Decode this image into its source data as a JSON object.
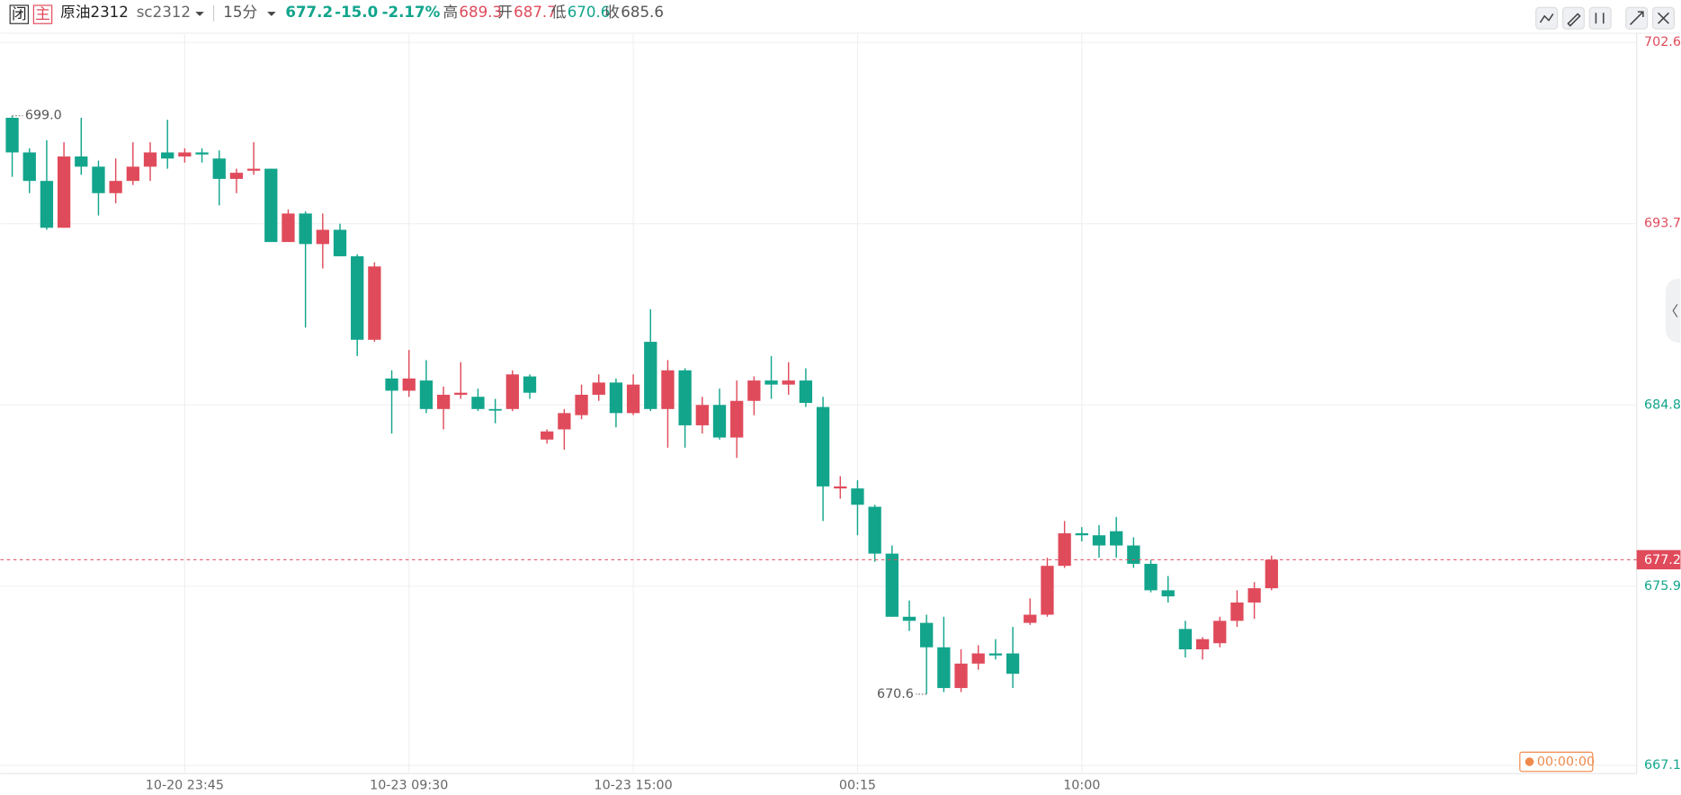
{
  "header": {
    "badge1": "闭",
    "badge2": "主",
    "name": "原油2312",
    "code": "sc2312",
    "period": "15分",
    "last": "677.2",
    "change": "-15.0",
    "change_pct": "-2.17%",
    "high_label": "高",
    "high": "689.3",
    "open_label": "开",
    "open": "687.7",
    "low_label": "低",
    "low": "670.6",
    "close_label": "收",
    "close": "685.6",
    "timer": "00:00:00"
  },
  "chart_data": {
    "type": "candlestick",
    "up_color": "#e04b5b",
    "down_color": "#12a58c",
    "ylim": [
      666.7,
      703.0
    ],
    "yticks": [
      {
        "value": 702.6,
        "label": "702.6",
        "color": "#e04b5b"
      },
      {
        "value": 693.7,
        "label": "693.7",
        "color": "#e04b5b"
      },
      {
        "value": 684.8,
        "label": "684.8",
        "color": "#12a58c"
      },
      {
        "value": 675.9,
        "label": "675.9",
        "color": "#12a58c"
      },
      {
        "value": 667.1,
        "label": "667.1",
        "color": "#12a58c"
      }
    ],
    "grid": true,
    "current_price": {
      "value": 677.2,
      "label": "677.2"
    },
    "annotations": [
      {
        "index": 0,
        "value": 699.0,
        "label": "699.0"
      },
      {
        "index": 53,
        "value": 670.6,
        "label": "670.6"
      }
    ],
    "categories": [
      null,
      null,
      null,
      null,
      null,
      null,
      null,
      null,
      null,
      null,
      "10-20 23:45",
      null,
      null,
      null,
      null,
      null,
      null,
      null,
      null,
      null,
      null,
      null,
      null,
      "10-23 09:30",
      null,
      null,
      null,
      null,
      null,
      null,
      null,
      null,
      null,
      null,
      null,
      null,
      "10-23 15:00",
      null,
      null,
      null,
      null,
      null,
      null,
      null,
      null,
      null,
      null,
      null,
      null,
      "00:15",
      null,
      null,
      null,
      null,
      null,
      null,
      null,
      null,
      null,
      null,
      null,
      null,
      "10:00",
      null,
      null,
      null,
      null,
      null,
      null,
      null,
      null,
      null,
      null,
      null
    ],
    "ohlc": [
      [
        698.9,
        699.0,
        696.0,
        697.2
      ],
      [
        697.2,
        697.4,
        695.2,
        695.8
      ],
      [
        695.8,
        697.8,
        693.4,
        693.5
      ],
      [
        693.5,
        697.7,
        693.5,
        697.0
      ],
      [
        697.0,
        698.9,
        696.1,
        696.5
      ],
      [
        696.5,
        696.8,
        694.1,
        695.2
      ],
      [
        695.2,
        696.9,
        694.7,
        695.8
      ],
      [
        695.8,
        697.7,
        695.6,
        696.5
      ],
      [
        696.5,
        697.7,
        695.8,
        697.2
      ],
      [
        697.2,
        698.8,
        696.4,
        696.9
      ],
      [
        697.0,
        697.4,
        696.7,
        697.2
      ],
      [
        697.2,
        697.4,
        696.7,
        697.1
      ],
      [
        696.9,
        697.3,
        694.6,
        695.9
      ],
      [
        695.9,
        696.4,
        695.2,
        696.2
      ],
      [
        696.3,
        697.7,
        696.1,
        696.4
      ],
      [
        696.4,
        696.4,
        692.8,
        692.8
      ],
      [
        692.8,
        694.4,
        692.8,
        694.2
      ],
      [
        694.2,
        694.3,
        688.6,
        692.7
      ],
      [
        692.7,
        694.2,
        691.5,
        693.4
      ],
      [
        693.4,
        693.7,
        692.1,
        692.1
      ],
      [
        692.1,
        692.2,
        687.2,
        688.0
      ],
      [
        688.0,
        691.8,
        687.9,
        691.6
      ],
      [
        686.1,
        686.5,
        683.4,
        685.5
      ],
      [
        685.5,
        687.5,
        685.2,
        686.1
      ],
      [
        686.0,
        687.0,
        684.4,
        684.6
      ],
      [
        684.6,
        685.7,
        683.6,
        685.3
      ],
      [
        685.3,
        686.9,
        685.1,
        685.4
      ],
      [
        685.2,
        685.6,
        684.5,
        684.6
      ],
      [
        684.6,
        685.1,
        683.9,
        684.6
      ],
      [
        684.6,
        686.5,
        684.5,
        686.3
      ],
      [
        686.2,
        686.3,
        685.1,
        685.4
      ],
      [
        683.1,
        683.6,
        682.9,
        683.5
      ],
      [
        683.6,
        684.6,
        682.6,
        684.4
      ],
      [
        684.3,
        685.8,
        684.1,
        685.3
      ],
      [
        685.3,
        686.3,
        685.0,
        685.9
      ],
      [
        685.9,
        686.1,
        683.7,
        684.4
      ],
      [
        684.4,
        686.3,
        684.3,
        685.8
      ],
      [
        687.9,
        689.5,
        684.5,
        684.6
      ],
      [
        684.6,
        687.0,
        682.7,
        686.5
      ],
      [
        686.5,
        686.6,
        682.7,
        683.8
      ],
      [
        683.8,
        685.2,
        683.4,
        684.8
      ],
      [
        684.8,
        685.6,
        683.1,
        683.2
      ],
      [
        683.2,
        686.0,
        682.2,
        685.0
      ],
      [
        685.0,
        686.2,
        684.3,
        686.0
      ],
      [
        686.0,
        687.2,
        685.1,
        685.8
      ],
      [
        685.8,
        686.9,
        685.3,
        686.0
      ],
      [
        686.0,
        686.6,
        684.7,
        684.9
      ],
      [
        684.7,
        685.2,
        679.1,
        680.8
      ],
      [
        680.7,
        681.3,
        680.2,
        680.8
      ],
      [
        680.7,
        681.1,
        678.4,
        679.9
      ],
      [
        679.8,
        679.9,
        677.1,
        677.5
      ],
      [
        677.5,
        677.9,
        674.4,
        674.4
      ],
      [
        674.4,
        675.2,
        673.7,
        674.2
      ],
      [
        674.1,
        674.5,
        670.6,
        672.9
      ],
      [
        672.9,
        674.4,
        670.7,
        670.9
      ],
      [
        670.9,
        672.8,
        670.7,
        672.1
      ],
      [
        672.1,
        673.0,
        671.8,
        672.6
      ],
      [
        672.6,
        673.3,
        672.3,
        672.5
      ],
      [
        672.6,
        673.9,
        670.9,
        671.6
      ],
      [
        674.1,
        675.3,
        674.0,
        674.5
      ],
      [
        674.5,
        677.3,
        674.4,
        676.9
      ],
      [
        676.9,
        679.1,
        676.8,
        678.5
      ],
      [
        678.5,
        678.8,
        678.1,
        678.4
      ],
      [
        678.4,
        678.9,
        677.3,
        677.9
      ],
      [
        678.6,
        679.3,
        677.3,
        677.9
      ],
      [
        677.9,
        678.3,
        676.8,
        677.0
      ],
      [
        677.0,
        677.2,
        675.6,
        675.7
      ],
      [
        675.7,
        676.4,
        675.1,
        675.4
      ],
      [
        673.8,
        674.2,
        672.4,
        672.8
      ],
      [
        672.8,
        673.4,
        672.3,
        673.3
      ],
      [
        673.1,
        674.4,
        672.9,
        674.2
      ],
      [
        674.2,
        675.7,
        673.9,
        675.1
      ],
      [
        675.1,
        676.1,
        674.3,
        675.8
      ],
      [
        675.8,
        677.4,
        675.7,
        677.2
      ]
    ]
  }
}
